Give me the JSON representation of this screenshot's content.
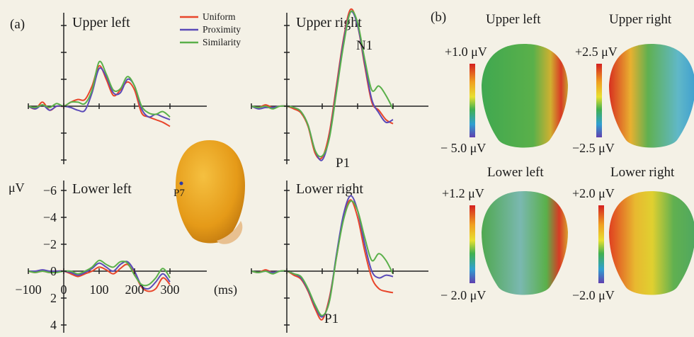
{
  "panel_labels": {
    "a": "(a)",
    "b": "(b)"
  },
  "colors": {
    "uniform": "#e8452a",
    "proximity": "#5a4ab8",
    "similarity": "#5ab04a",
    "head": "#e5a020",
    "axis": "#222222"
  },
  "head_label": "P7",
  "chart_data": {
    "type": "line",
    "legend": [
      "Uniform",
      "Proximity",
      "Similarity"
    ],
    "legend_position": "top",
    "y_unit_label": "μV",
    "x_unit_label": "(ms)",
    "y_ticks": [
      -6,
      -4,
      -2,
      0,
      2,
      4
    ],
    "y_tick_labels": [
      "−6",
      "−4",
      "−2",
      "0",
      "2",
      "4"
    ],
    "x_ticks": [
      -100,
      0,
      100,
      200,
      300
    ],
    "x_tick_labels": [
      "−100",
      "0",
      "100",
      "200",
      "300"
    ],
    "xlim": [
      -100,
      300
    ],
    "ylim": [
      -6,
      4
    ],
    "inverted_y": true,
    "panels": [
      {
        "id": "upper_left",
        "title": "Upper left",
        "peaks": [],
        "x": [
          -100,
          -80,
          -60,
          -40,
          -20,
          0,
          20,
          40,
          60,
          80,
          100,
          120,
          140,
          160,
          180,
          200,
          220,
          240,
          260,
          280,
          300
        ],
        "series": [
          {
            "name": "Uniform",
            "values": [
              0,
              0.2,
              -0.3,
              0.3,
              0,
              0,
              -0.3,
              -0.5,
              -0.5,
              -1.5,
              -3.0,
              -2.0,
              -0.8,
              -1.2,
              -1.8,
              -1.2,
              0.5,
              0.8,
              1.0,
              1.2,
              1.5
            ]
          },
          {
            "name": "Proximity",
            "values": [
              0,
              0.2,
              -0.1,
              0.3,
              0,
              0,
              0.1,
              0.3,
              0.3,
              -1.0,
              -2.8,
              -2.2,
              -1.0,
              -1.0,
              -2.0,
              -1.5,
              0.2,
              0.8,
              0.6,
              0.8,
              1.0
            ]
          },
          {
            "name": "Similarity",
            "values": [
              0,
              0.1,
              -0.1,
              0.1,
              -0.2,
              0,
              -0.3,
              -0.3,
              -0.2,
              -1.2,
              -3.3,
              -2.4,
              -1.2,
              -1.3,
              -2.2,
              -1.5,
              0.0,
              0.5,
              0.6,
              0.4,
              0.8
            ]
          }
        ]
      },
      {
        "id": "upper_right",
        "title": "Upper right",
        "peaks": [
          "N1",
          "P1"
        ],
        "x": [
          -100,
          -80,
          -60,
          -40,
          -20,
          0,
          20,
          40,
          60,
          80,
          100,
          120,
          140,
          160,
          180,
          200,
          220,
          240,
          260,
          280,
          300
        ],
        "series": [
          {
            "name": "Uniform",
            "values": [
              0,
              0.1,
              -0.1,
              0.1,
              0,
              0,
              0.2,
              0.5,
              1.5,
              3.5,
              3.8,
              2.0,
              -1.5,
              -5.0,
              -7.2,
              -6.0,
              -3.0,
              -0.3,
              0.3,
              1.0,
              1.3
            ]
          },
          {
            "name": "Proximity",
            "values": [
              0,
              0.2,
              0.1,
              0.1,
              0,
              0,
              0.1,
              0.4,
              1.4,
              3.3,
              4.0,
              2.3,
              -1.2,
              -4.8,
              -7.0,
              -6.0,
              -3.2,
              -0.5,
              0.5,
              1.2,
              1.0
            ]
          },
          {
            "name": "Similarity",
            "values": [
              0,
              0.1,
              0,
              0.2,
              0,
              0,
              0.1,
              0.4,
              1.4,
              3.3,
              3.7,
              2.4,
              -1.0,
              -4.5,
              -7.0,
              -6.2,
              -3.5,
              -1.2,
              -1.5,
              -0.8,
              0.2
            ]
          }
        ]
      },
      {
        "id": "lower_left",
        "title": "Lower left",
        "peaks": [],
        "x": [
          -100,
          -80,
          -60,
          -40,
          -20,
          0,
          20,
          40,
          60,
          80,
          100,
          120,
          140,
          160,
          180,
          200,
          220,
          240,
          260,
          280,
          300
        ],
        "series": [
          {
            "name": "Uniform",
            "values": [
              0,
              0.1,
              0,
              0.1,
              0,
              0,
              0.2,
              0.4,
              0.2,
              0,
              -0.3,
              -0.1,
              0.2,
              -0.2,
              -0.5,
              0.2,
              1.2,
              1.5,
              1.3,
              0.5,
              1.0
            ]
          },
          {
            "name": "Proximity",
            "values": [
              0,
              0,
              -0.1,
              0,
              0,
              0,
              0.1,
              0.3,
              0.1,
              -0.2,
              -0.6,
              -0.3,
              0,
              -0.5,
              -0.7,
              0,
              1.1,
              1.3,
              0.8,
              0.2,
              0.8
            ]
          },
          {
            "name": "Similarity",
            "values": [
              0,
              0.1,
              0,
              0.1,
              0.1,
              0,
              0,
              0.2,
              0,
              -0.3,
              -0.8,
              -0.5,
              -0.3,
              -0.7,
              -0.6,
              0.3,
              1.0,
              1.0,
              0.5,
              -0.2,
              0.5
            ]
          }
        ]
      },
      {
        "id": "lower_right",
        "title": "Lower right",
        "peaks": [
          "P1"
        ],
        "x": [
          -100,
          -80,
          -60,
          -40,
          -20,
          0,
          20,
          40,
          60,
          80,
          100,
          120,
          140,
          160,
          180,
          200,
          220,
          240,
          260,
          280,
          300
        ],
        "series": [
          {
            "name": "Uniform",
            "values": [
              0,
              0.1,
              -0.1,
              0.1,
              0,
              0,
              0.3,
              0.6,
              1.5,
              2.8,
              3.6,
              2.0,
              -1.0,
              -4.0,
              -5.3,
              -4.0,
              -1.5,
              0.5,
              1.3,
              1.5,
              1.6
            ]
          },
          {
            "name": "Proximity",
            "values": [
              0,
              0.1,
              0,
              0.1,
              0,
              0,
              0.2,
              0.5,
              1.4,
              2.6,
              3.4,
              2.2,
              -1.2,
              -4.2,
              -5.6,
              -4.5,
              -2.0,
              0,
              0.5,
              0.3,
              0.4
            ]
          },
          {
            "name": "Similarity",
            "values": [
              0,
              0.1,
              0,
              0.2,
              0,
              0,
              0.2,
              0.4,
              1.3,
              2.5,
              3.3,
              2.3,
              -1.0,
              -3.8,
              -5.2,
              -4.5,
              -2.5,
              -0.8,
              -1.3,
              -0.8,
              0.2
            ]
          }
        ]
      }
    ]
  },
  "topomaps": [
    {
      "id": "upper_left",
      "title": "Upper left",
      "max_label": "+1.0 μV",
      "min_label": "− 5.0 μV"
    },
    {
      "id": "upper_right",
      "title": "Upper right",
      "max_label": "+2.5 μV",
      "min_label": "−2.5 μV"
    },
    {
      "id": "lower_left",
      "title": "Lower left",
      "max_label": "+1.2 μV",
      "min_label": "− 2.0 μV"
    },
    {
      "id": "lower_right",
      "title": "Lower right",
      "max_label": "+2.0 μV",
      "min_label": "−2.0 μV"
    }
  ]
}
